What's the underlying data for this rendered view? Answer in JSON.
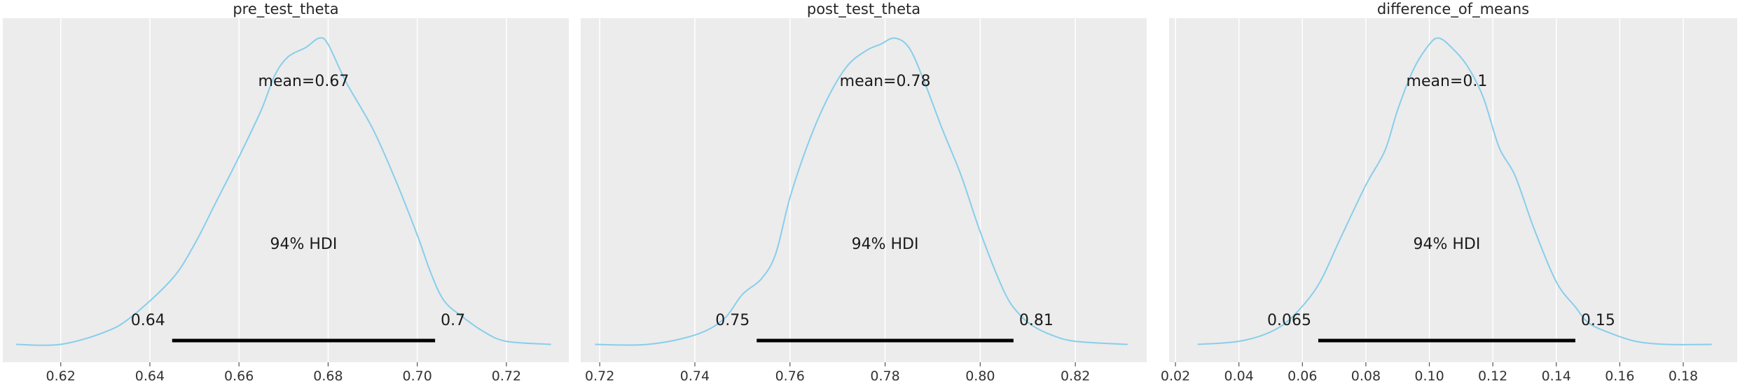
{
  "chart_data": [
    {
      "type": "area",
      "title": "pre_test_theta",
      "xlim": [
        0.607,
        0.734
      ],
      "xticks": [
        0.62,
        0.64,
        0.66,
        0.68,
        0.7,
        0.72
      ],
      "tick_labels": [
        "0.62",
        "0.64",
        "0.66",
        "0.68",
        "0.70",
        "0.72"
      ],
      "grid": true,
      "mean_label": "mean=0.67",
      "hdi_label": "94% HDI",
      "hdi": [
        0.645,
        0.704
      ],
      "hdi_labels": [
        "0.64",
        "0.7"
      ],
      "series": [
        {
          "x": [
            0.61,
            0.62,
            0.63,
            0.636,
            0.645,
            0.65,
            0.655,
            0.66,
            0.665,
            0.668,
            0.671,
            0.675,
            0.678,
            0.68,
            0.684,
            0.69,
            0.695,
            0.7,
            0.703,
            0.706,
            0.71,
            0.715,
            0.72,
            0.73
          ],
          "y": [
            0.01,
            0.01,
            0.05,
            0.1,
            0.22,
            0.33,
            0.47,
            0.61,
            0.76,
            0.87,
            0.93,
            0.96,
            0.99,
            0.97,
            0.85,
            0.7,
            0.54,
            0.36,
            0.24,
            0.15,
            0.1,
            0.05,
            0.02,
            0.01
          ]
        }
      ]
    },
    {
      "type": "area",
      "title": "post_test_theta",
      "xlim": [
        0.716,
        0.835
      ],
      "xticks": [
        0.72,
        0.74,
        0.76,
        0.78,
        0.8,
        0.82
      ],
      "tick_labels": [
        "0.72",
        "0.74",
        "0.76",
        "0.78",
        "0.80",
        "0.82"
      ],
      "grid": true,
      "mean_label": "mean=0.78",
      "hdi_label": "94% HDI",
      "hdi": [
        0.753,
        0.807
      ],
      "hdi_labels": [
        "0.75",
        "0.81"
      ],
      "series": [
        {
          "x": [
            0.719,
            0.73,
            0.74,
            0.746,
            0.75,
            0.754,
            0.757,
            0.76,
            0.764,
            0.768,
            0.772,
            0.776,
            0.779,
            0.782,
            0.785,
            0.788,
            0.792,
            0.796,
            0.8,
            0.805,
            0.808,
            0.811,
            0.815,
            0.82,
            0.831
          ],
          "y": [
            0.01,
            0.01,
            0.04,
            0.09,
            0.17,
            0.22,
            0.3,
            0.48,
            0.66,
            0.8,
            0.9,
            0.95,
            0.97,
            0.99,
            0.96,
            0.86,
            0.7,
            0.55,
            0.37,
            0.18,
            0.11,
            0.07,
            0.04,
            0.02,
            0.01
          ]
        }
      ]
    },
    {
      "type": "area",
      "title": "difference_of_means",
      "xlim": [
        0.018,
        0.197
      ],
      "xticks": [
        0.02,
        0.04,
        0.06,
        0.08,
        0.1,
        0.12,
        0.14,
        0.16,
        0.18
      ],
      "tick_labels": [
        "0.02",
        "0.04",
        "0.06",
        "0.08",
        "0.10",
        "0.12",
        "0.14",
        "0.16",
        "0.18"
      ],
      "grid": true,
      "mean_label": "mean=0.1",
      "hdi_label": "94% HDI",
      "hdi": [
        0.065,
        0.146
      ],
      "hdi_labels": [
        "0.065",
        "0.15"
      ],
      "series": [
        {
          "x": [
            0.027,
            0.04,
            0.05,
            0.057,
            0.065,
            0.072,
            0.08,
            0.086,
            0.09,
            0.095,
            0.1,
            0.103,
            0.107,
            0.112,
            0.117,
            0.122,
            0.127,
            0.133,
            0.14,
            0.146,
            0.15,
            0.156,
            0.165,
            0.175,
            0.189
          ],
          "y": [
            0.01,
            0.02,
            0.05,
            0.1,
            0.2,
            0.35,
            0.52,
            0.63,
            0.76,
            0.89,
            0.97,
            0.99,
            0.96,
            0.9,
            0.8,
            0.64,
            0.55,
            0.38,
            0.21,
            0.13,
            0.08,
            0.05,
            0.02,
            0.01,
            0.01
          ]
        }
      ]
    }
  ]
}
